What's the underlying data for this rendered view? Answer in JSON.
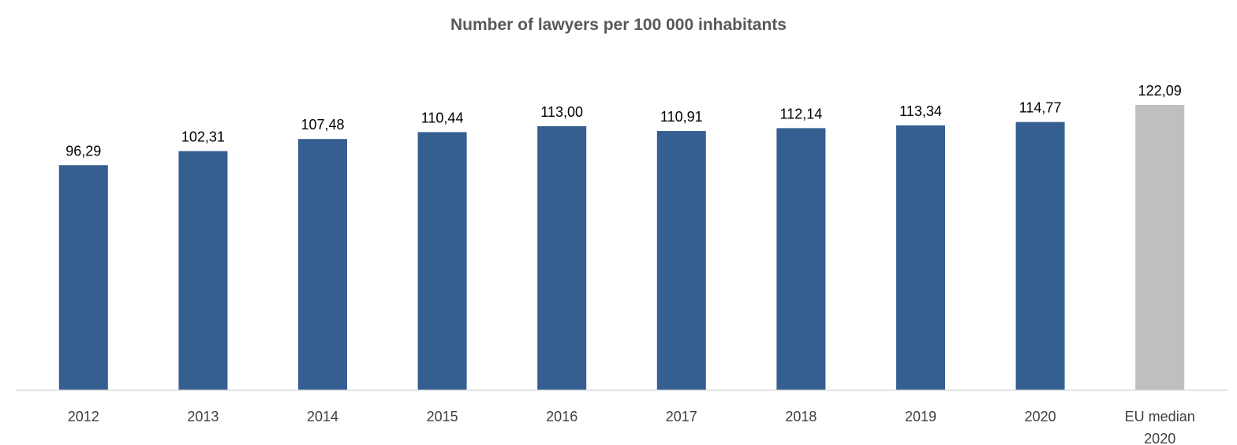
{
  "chart_data": {
    "type": "bar",
    "title": "Number of lawyers per 100 000 inhabitants",
    "xlabel": "",
    "ylabel": "",
    "categories": [
      "2012",
      "2013",
      "2014",
      "2015",
      "2016",
      "2017",
      "2018",
      "2019",
      "2020",
      "EU median 2020"
    ],
    "category_lines": [
      [
        "2012"
      ],
      [
        "2013"
      ],
      [
        "2014"
      ],
      [
        "2015"
      ],
      [
        "2016"
      ],
      [
        "2017"
      ],
      [
        "2018"
      ],
      [
        "2019"
      ],
      [
        "2020"
      ],
      [
        "EU median",
        "2020"
      ]
    ],
    "values": [
      96.29,
      102.31,
      107.48,
      110.44,
      113.0,
      110.91,
      112.14,
      113.34,
      114.77,
      122.09
    ],
    "value_labels": [
      "96,29",
      "102,31",
      "107,48",
      "110,44",
      "113,00",
      "110,91",
      "112,14",
      "113,34",
      "114,77",
      "122,09"
    ],
    "bar_colors": [
      "#365f91",
      "#365f91",
      "#365f91",
      "#365f91",
      "#365f91",
      "#365f91",
      "#365f91",
      "#365f91",
      "#365f91",
      "#bfbfbf"
    ],
    "ylim": [
      0,
      122.09
    ],
    "grid": false,
    "legend": "none",
    "axis_color": "#d9d9d9"
  }
}
